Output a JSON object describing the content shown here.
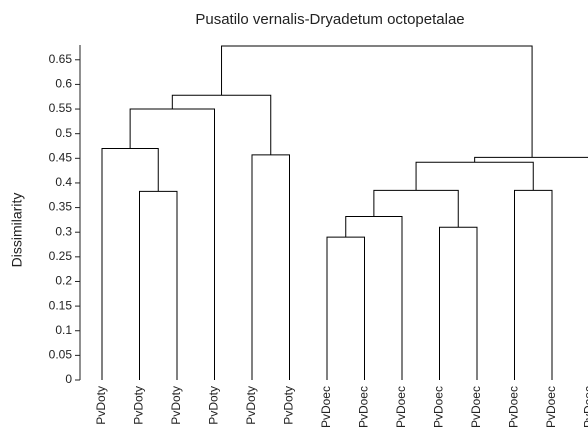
{
  "chart_data": {
    "type": "dendrogram",
    "title": "Pusatilo vernalis-Dryadetum octopetalae",
    "ylabel": "Dissimilarity",
    "leaves": [
      "PvDoty",
      "PvDoty",
      "PvDoty",
      "PvDoty",
      "PvDoty",
      "PvDoty",
      "PvDoec",
      "PvDoec",
      "PvDoec",
      "PvDoec",
      "PvDoec",
      "PvDoec",
      "PvDoec",
      "PvDoec"
    ],
    "merges": [
      [
        1,
        2,
        0.383
      ],
      [
        0,
        14,
        0.47
      ],
      [
        15,
        3,
        0.55
      ],
      [
        4,
        5,
        0.457
      ],
      [
        16,
        17,
        0.578
      ],
      [
        6,
        7,
        0.29
      ],
      [
        19,
        8,
        0.332
      ],
      [
        9,
        10,
        0.31
      ],
      [
        20,
        21,
        0.385
      ],
      [
        11,
        12,
        0.385
      ],
      [
        22,
        23,
        0.442
      ],
      [
        24,
        13,
        0.452
      ],
      [
        18,
        25,
        0.678
      ]
    ],
    "ylim": [
      0,
      0.68
    ],
    "yticks": [
      0,
      0.05,
      0.1,
      0.15,
      0.2,
      0.25,
      0.3,
      0.35,
      0.4,
      0.45,
      0.5,
      0.55,
      0.6,
      0.65
    ],
    "color": "#000000"
  }
}
